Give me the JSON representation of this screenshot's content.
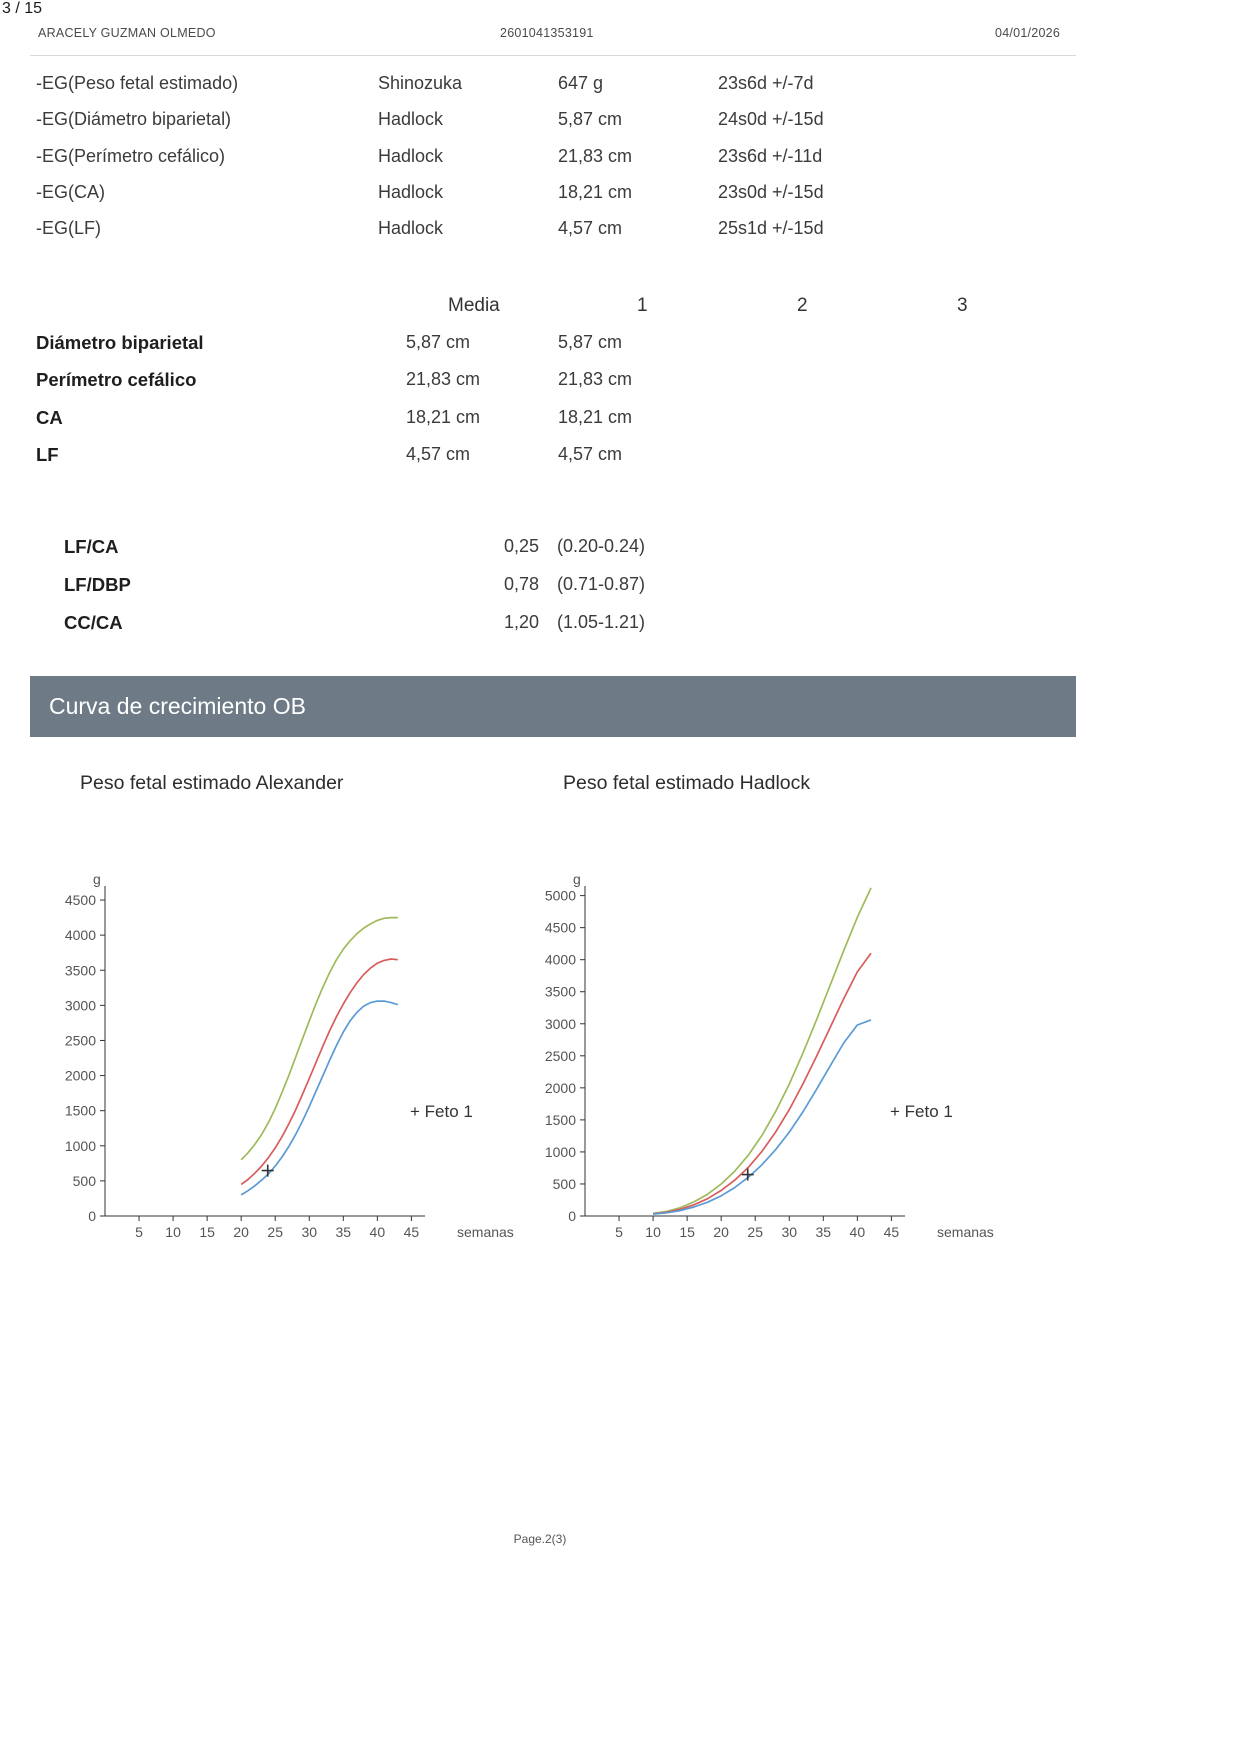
{
  "viewer": {
    "page_indicator": "3 / 15"
  },
  "header": {
    "patient_name": "ARACELY GUZMAN OLMEDO",
    "patient_id": "2601041353191",
    "date": "04/01/2026"
  },
  "eg_table": {
    "rows": [
      {
        "label": "-EG(Peso fetal estimado)",
        "method": "Shinozuka",
        "value": "647 g",
        "ga": "23s6d +/-7d"
      },
      {
        "label": "-EG(Diámetro biparietal)",
        "method": "Hadlock",
        "value": "5,87 cm",
        "ga": "24s0d +/-15d"
      },
      {
        "label": "-EG(Perímetro cefálico)",
        "method": "Hadlock",
        "value": "21,83 cm",
        "ga": "23s6d +/-11d"
      },
      {
        "label": "-EG(CA)",
        "method": "Hadlock",
        "value": "18,21 cm",
        "ga": "23s0d +/-15d"
      },
      {
        "label": "-EG(LF)",
        "method": "Hadlock",
        "value": "4,57 cm",
        "ga": "25s1d +/-15d"
      }
    ]
  },
  "measurements": {
    "col_media": "Media",
    "col_1": "1",
    "col_2": "2",
    "col_3": "3",
    "rows": [
      {
        "label": "Diámetro biparietal",
        "media": "5,87 cm",
        "v1": "5,87 cm",
        "v2": "",
        "v3": ""
      },
      {
        "label": "Perímetro cefálico",
        "media": "21,83 cm",
        "v1": "21,83 cm",
        "v2": "",
        "v3": ""
      },
      {
        "label": "CA",
        "media": "18,21 cm",
        "v1": "18,21 cm",
        "v2": "",
        "v3": ""
      },
      {
        "label": "LF",
        "media": "4,57 cm",
        "v1": "4,57 cm",
        "v2": "",
        "v3": ""
      }
    ]
  },
  "ratios": {
    "rows": [
      {
        "label": "LF/CA",
        "value": "0,25",
        "range": "(0.20-0.24)"
      },
      {
        "label": "LF/DBP",
        "value": "0,78",
        "range": "(0.71-0.87)"
      },
      {
        "label": "CC/CA",
        "value": "1,20",
        "range": "(1.05-1.21)"
      }
    ]
  },
  "section_banner": {
    "title": "Curva de crecimiento OB"
  },
  "footer": {
    "label": "Page.2(3)"
  },
  "chart_data": [
    {
      "type": "line",
      "title": "Peso fetal estimado Alexander",
      "ylabel": "g",
      "xlabel": "semanas",
      "xlim": [
        0,
        47
      ],
      "ylim": [
        0,
        4700
      ],
      "xticks": [
        5,
        10,
        15,
        20,
        25,
        30,
        35,
        40,
        45
      ],
      "yticks": [
        0,
        500,
        1000,
        1500,
        2000,
        2500,
        3000,
        3500,
        4000,
        4500
      ],
      "legend": "+ Feto 1",
      "grid": false,
      "legend_position": "right-middle",
      "series": [
        {
          "name": "percentile-high",
          "color": "#9fba5a",
          "points": [
            [
              20,
              800
            ],
            [
              21,
              900
            ],
            [
              22,
              1020
            ],
            [
              23,
              1160
            ],
            [
              24,
              1330
            ],
            [
              25,
              1530
            ],
            [
              26,
              1760
            ],
            [
              27,
              2000
            ],
            [
              28,
              2260
            ],
            [
              29,
              2520
            ],
            [
              30,
              2780
            ],
            [
              31,
              3030
            ],
            [
              32,
              3260
            ],
            [
              33,
              3470
            ],
            [
              34,
              3650
            ],
            [
              35,
              3800
            ],
            [
              36,
              3920
            ],
            [
              37,
              4020
            ],
            [
              38,
              4100
            ],
            [
              39,
              4160
            ],
            [
              40,
              4210
            ],
            [
              41,
              4240
            ],
            [
              42,
              4250
            ],
            [
              43,
              4250
            ]
          ]
        },
        {
          "name": "percentile-mid",
          "color": "#d85c5c",
          "points": [
            [
              20,
              450
            ],
            [
              21,
              520
            ],
            [
              22,
              610
            ],
            [
              23,
              710
            ],
            [
              24,
              830
            ],
            [
              25,
              970
            ],
            [
              26,
              1130
            ],
            [
              27,
              1310
            ],
            [
              28,
              1510
            ],
            [
              29,
              1730
            ],
            [
              30,
              1960
            ],
            [
              31,
              2190
            ],
            [
              32,
              2420
            ],
            [
              33,
              2640
            ],
            [
              34,
              2840
            ],
            [
              35,
              3020
            ],
            [
              36,
              3180
            ],
            [
              37,
              3320
            ],
            [
              38,
              3440
            ],
            [
              39,
              3530
            ],
            [
              40,
              3600
            ],
            [
              41,
              3640
            ],
            [
              42,
              3660
            ],
            [
              43,
              3650
            ]
          ]
        },
        {
          "name": "percentile-low",
          "color": "#5b9bd5",
          "points": [
            [
              20,
              300
            ],
            [
              21,
              360
            ],
            [
              22,
              430
            ],
            [
              23,
              510
            ],
            [
              24,
              600
            ],
            [
              25,
              710
            ],
            [
              26,
              840
            ],
            [
              27,
              990
            ],
            [
              28,
              1160
            ],
            [
              29,
              1350
            ],
            [
              30,
              1560
            ],
            [
              31,
              1780
            ],
            [
              32,
              2000
            ],
            [
              33,
              2220
            ],
            [
              34,
              2430
            ],
            [
              35,
              2620
            ],
            [
              36,
              2780
            ],
            [
              37,
              2900
            ],
            [
              38,
              2990
            ],
            [
              39,
              3040
            ],
            [
              40,
              3060
            ],
            [
              41,
              3060
            ],
            [
              42,
              3040
            ],
            [
              43,
              3010
            ]
          ]
        }
      ],
      "marker": {
        "x": 23.9,
        "y": 647,
        "label": "Feto 1"
      }
    },
    {
      "type": "line",
      "title": "Peso fetal estimado Hadlock",
      "ylabel": "g",
      "xlabel": "semanas",
      "xlim": [
        0,
        47
      ],
      "ylim": [
        0,
        5150
      ],
      "xticks": [
        5,
        10,
        15,
        20,
        25,
        30,
        35,
        40,
        45
      ],
      "yticks": [
        0,
        500,
        1000,
        1500,
        2000,
        2500,
        3000,
        3500,
        4000,
        4500,
        5000
      ],
      "legend": "+ Feto 1",
      "grid": false,
      "legend_position": "right-middle",
      "series": [
        {
          "name": "percentile-high",
          "color": "#9fba5a",
          "points": [
            [
              10,
              40
            ],
            [
              12,
              70
            ],
            [
              14,
              130
            ],
            [
              16,
              220
            ],
            [
              18,
              340
            ],
            [
              20,
              500
            ],
            [
              22,
              700
            ],
            [
              24,
              950
            ],
            [
              26,
              1260
            ],
            [
              28,
              1630
            ],
            [
              30,
              2060
            ],
            [
              32,
              2540
            ],
            [
              34,
              3060
            ],
            [
              36,
              3600
            ],
            [
              38,
              4140
            ],
            [
              40,
              4660
            ],
            [
              42,
              5120
            ]
          ]
        },
        {
          "name": "percentile-mid",
          "color": "#d85c5c",
          "points": [
            [
              10,
              35
            ],
            [
              12,
              60
            ],
            [
              14,
              105
            ],
            [
              16,
              175
            ],
            [
              18,
              270
            ],
            [
              20,
              400
            ],
            [
              22,
              560
            ],
            [
              24,
              760
            ],
            [
              26,
              1010
            ],
            [
              28,
              1310
            ],
            [
              30,
              1660
            ],
            [
              32,
              2060
            ],
            [
              34,
              2490
            ],
            [
              36,
              2940
            ],
            [
              38,
              3390
            ],
            [
              40,
              3810
            ],
            [
              42,
              4100
            ]
          ]
        },
        {
          "name": "percentile-low",
          "color": "#5b9bd5",
          "points": [
            [
              10,
              30
            ],
            [
              12,
              50
            ],
            [
              14,
              85
            ],
            [
              16,
              140
            ],
            [
              18,
              215
            ],
            [
              20,
              315
            ],
            [
              22,
              445
            ],
            [
              24,
              605
            ],
            [
              26,
              800
            ],
            [
              28,
              1035
            ],
            [
              30,
              1310
            ],
            [
              32,
              1625
            ],
            [
              34,
              1975
            ],
            [
              36,
              2340
            ],
            [
              38,
              2700
            ],
            [
              40,
              2980
            ],
            [
              42,
              3060
            ]
          ]
        }
      ],
      "marker": {
        "x": 23.9,
        "y": 647,
        "label": "Feto 1"
      }
    }
  ]
}
